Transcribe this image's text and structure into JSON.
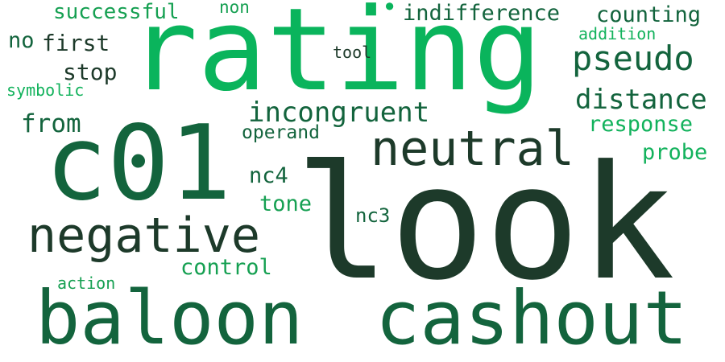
{
  "words": [
    {
      "id": "look",
      "text": "look",
      "color": "#1d3a2a"
    },
    {
      "id": "rating",
      "text": "rating",
      "color": "#0ab45c"
    },
    {
      "id": "c01",
      "text": "c01",
      "color": "#13643d"
    },
    {
      "id": "baloon",
      "text": "baloon",
      "color": "#13643d"
    },
    {
      "id": "cashout",
      "text": "cashout",
      "color": "#13643d"
    },
    {
      "id": "negative",
      "text": "negative",
      "color": "#1d3a2a"
    },
    {
      "id": "neutral",
      "text": "neutral",
      "color": "#1d3a2a"
    },
    {
      "id": "pseudo",
      "text": "pseudo",
      "color": "#13643d"
    },
    {
      "id": "distance",
      "text": "distance",
      "color": "#13643d"
    },
    {
      "id": "incongruent",
      "text": "incongruent",
      "color": "#13643d"
    },
    {
      "id": "indifference",
      "text": "indifference",
      "color": "#13643d"
    },
    {
      "id": "counting",
      "text": "counting",
      "color": "#13643d"
    },
    {
      "id": "successful",
      "text": "successful",
      "color": "#16a052"
    },
    {
      "id": "from",
      "text": "from",
      "color": "#13643d"
    },
    {
      "id": "response",
      "text": "response",
      "color": "#12b25c"
    },
    {
      "id": "probe",
      "text": "probe",
      "color": "#12b25c"
    },
    {
      "id": "first",
      "text": "first",
      "color": "#1d3a2a"
    },
    {
      "id": "stop",
      "text": "stop",
      "color": "#1d3a2a"
    },
    {
      "id": "no",
      "text": "no",
      "color": "#13643d"
    },
    {
      "id": "nc4",
      "text": "nc4",
      "color": "#13643d"
    },
    {
      "id": "tone",
      "text": "tone",
      "color": "#16a052"
    },
    {
      "id": "control",
      "text": "control",
      "color": "#16a052"
    },
    {
      "id": "nc3",
      "text": "nc3",
      "color": "#13643d"
    },
    {
      "id": "operand",
      "text": "operand",
      "color": "#13643d"
    },
    {
      "id": "addition",
      "text": "addition",
      "color": "#12b25c"
    },
    {
      "id": "symbolic",
      "text": "symbolic",
      "color": "#12b25c"
    },
    {
      "id": "action",
      "text": "action",
      "color": "#16a052"
    },
    {
      "id": "tool",
      "text": "tool",
      "color": "#1d3a2a"
    },
    {
      "id": "non",
      "text": "non",
      "color": "#16a052"
    },
    {
      "id": "dot",
      "text": "•",
      "color": "#0ab45c"
    }
  ]
}
